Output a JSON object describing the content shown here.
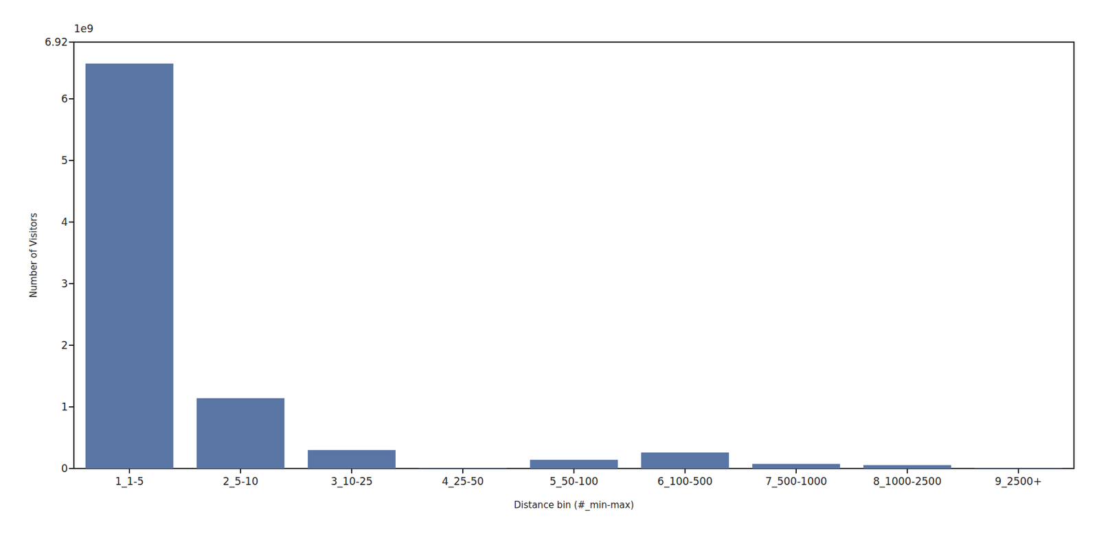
{
  "chart_data": {
    "type": "bar",
    "x_label": "Distance bin (#_min-max)",
    "y_label": "Number of Visitors",
    "annotations": [
      "1e9"
    ],
    "categories": [
      "1_1-5",
      "2_5-10",
      "3_10-25",
      "4_25-50",
      "5_50-100",
      "6_100-500",
      "7_500-1000",
      "8_1000-2500",
      "9_2500+"
    ],
    "values": [
      6.57,
      1.14,
      0.3,
      0.005,
      0.14,
      0.26,
      0.075,
      0.055,
      0.005
    ],
    "color": "#5975a4",
    "ylim": [
      0,
      6.92
    ],
    "yticks": [
      0,
      1,
      2,
      3,
      4,
      5,
      6
    ],
    "grid": false
  }
}
